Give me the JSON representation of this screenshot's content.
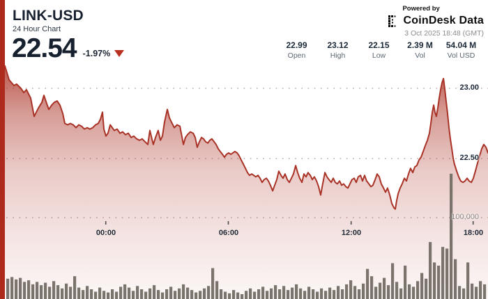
{
  "header": {
    "symbol": "LINK-USD",
    "subtitle": "24 Hour Chart",
    "price": "22.54",
    "change_pct": "-1.97%",
    "change_direction": "down",
    "powered_by": "Powered by",
    "provider": "CoinDesk Data",
    "timestamp": "3 Oct 2025 18:48 (GMT)"
  },
  "stats": [
    {
      "value": "22.99",
      "label": "Open"
    },
    {
      "value": "23.12",
      "label": "High"
    },
    {
      "value": "22.15",
      "label": "Low"
    },
    {
      "value": "2.39 M",
      "label": "Vol"
    },
    {
      "value": "54.04 M",
      "label": "Vol USD"
    }
  ],
  "colors": {
    "accent_red": "#ae2a1d",
    "line_red": "#a93226",
    "triangle_red": "#b8301f",
    "navy_text": "#16202e",
    "grid_dot": "#b5aca7",
    "volume_bar": "#7b746c",
    "volume_label": "#8d8680"
  },
  "chart_data": {
    "type": "area",
    "title": "LINK-USD 24 hour price with volume",
    "x_axis": {
      "unit": "hours_from_chart_start",
      "range_hours": [
        0,
        24
      ],
      "tick_hours": [
        5.2,
        11.23,
        17.27,
        23.27
      ],
      "tick_labels": [
        "00:00",
        "06:00",
        "12:00",
        "18:00"
      ]
    },
    "price_axis": {
      "side": "right",
      "tick_values": [
        23.0,
        22.5
      ],
      "tick_labels": [
        "23.00",
        "22.50"
      ],
      "grid": "dotted"
    },
    "volume_axis": {
      "side": "right",
      "tick_value": 100000,
      "tick_label": "100,000",
      "grid": "dotted"
    },
    "points": [
      [
        0,
        23.14
      ],
      [
        0.24,
        23.16
      ],
      [
        0.45,
        23.06
      ],
      [
        0.69,
        23.02
      ],
      [
        0.82,
        23.03
      ],
      [
        1.03,
        23.0
      ],
      [
        1.17,
        22.97
      ],
      [
        1.3,
        22.99
      ],
      [
        1.51,
        22.93
      ],
      [
        1.68,
        22.8
      ],
      [
        1.89,
        22.86
      ],
      [
        2.06,
        22.9
      ],
      [
        2.16,
        22.95
      ],
      [
        2.3,
        22.89
      ],
      [
        2.4,
        22.85
      ],
      [
        2.54,
        22.88
      ],
      [
        2.67,
        22.9
      ],
      [
        2.81,
        22.91
      ],
      [
        2.95,
        22.88
      ],
      [
        3.09,
        22.82
      ],
      [
        3.19,
        22.75
      ],
      [
        3.33,
        22.74
      ],
      [
        3.46,
        22.75
      ],
      [
        3.6,
        22.74
      ],
      [
        3.74,
        22.72
      ],
      [
        3.87,
        22.74
      ],
      [
        4.01,
        22.73
      ],
      [
        4.15,
        22.71
      ],
      [
        4.29,
        22.72
      ],
      [
        4.42,
        22.71
      ],
      [
        4.56,
        22.72
      ],
      [
        4.7,
        22.74
      ],
      [
        4.83,
        22.75
      ],
      [
        4.94,
        22.78
      ],
      [
        5.04,
        22.83
      ],
      [
        5.11,
        22.71
      ],
      [
        5.21,
        22.66
      ],
      [
        5.31,
        22.68
      ],
      [
        5.42,
        22.74
      ],
      [
        5.52,
        22.72
      ],
      [
        5.62,
        22.7
      ],
      [
        5.76,
        22.71
      ],
      [
        5.9,
        22.68
      ],
      [
        6.03,
        22.69
      ],
      [
        6.17,
        22.67
      ],
      [
        6.31,
        22.68
      ],
      [
        6.45,
        22.65
      ],
      [
        6.58,
        22.66
      ],
      [
        6.72,
        22.64
      ],
      [
        6.86,
        22.63
      ],
      [
        6.99,
        22.64
      ],
      [
        7.13,
        22.62
      ],
      [
        7.27,
        22.6
      ],
      [
        7.37,
        22.7
      ],
      [
        7.47,
        22.64
      ],
      [
        7.54,
        22.6
      ],
      [
        7.65,
        22.65
      ],
      [
        7.78,
        22.7
      ],
      [
        7.89,
        22.63
      ],
      [
        7.99,
        22.66
      ],
      [
        8.09,
        22.76
      ],
      [
        8.23,
        22.85
      ],
      [
        8.33,
        22.79
      ],
      [
        8.43,
        22.76
      ],
      [
        8.57,
        22.72
      ],
      [
        8.71,
        22.74
      ],
      [
        8.85,
        22.73
      ],
      [
        9.02,
        22.6
      ],
      [
        9.12,
        22.65
      ],
      [
        9.22,
        22.67
      ],
      [
        9.36,
        22.69
      ],
      [
        9.5,
        22.68
      ],
      [
        9.6,
        22.65
      ],
      [
        9.7,
        22.58
      ],
      [
        9.81,
        22.62
      ],
      [
        9.91,
        22.65
      ],
      [
        10.01,
        22.64
      ],
      [
        10.11,
        22.62
      ],
      [
        10.22,
        22.61
      ],
      [
        10.32,
        22.63
      ],
      [
        10.42,
        22.64
      ],
      [
        10.53,
        22.62
      ],
      [
        10.63,
        22.6
      ],
      [
        10.73,
        22.57
      ],
      [
        10.83,
        22.55
      ],
      [
        10.94,
        22.53
      ],
      [
        11.04,
        22.51
      ],
      [
        11.14,
        22.53
      ],
      [
        11.25,
        22.54
      ],
      [
        11.35,
        22.53
      ],
      [
        11.45,
        22.54
      ],
      [
        11.55,
        22.55
      ],
      [
        11.66,
        22.54
      ],
      [
        11.76,
        22.52
      ],
      [
        11.86,
        22.49
      ],
      [
        11.97,
        22.46
      ],
      [
        12.07,
        22.43
      ],
      [
        12.17,
        22.4
      ],
      [
        12.27,
        22.38
      ],
      [
        12.38,
        22.39
      ],
      [
        12.48,
        22.38
      ],
      [
        12.58,
        22.37
      ],
      [
        12.69,
        22.38
      ],
      [
        12.79,
        22.36
      ],
      [
        12.89,
        22.33
      ],
      [
        12.99,
        22.35
      ],
      [
        13.1,
        22.36
      ],
      [
        13.2,
        22.34
      ],
      [
        13.3,
        22.31
      ],
      [
        13.41,
        22.27
      ],
      [
        13.51,
        22.31
      ],
      [
        13.61,
        22.35
      ],
      [
        13.71,
        22.41
      ],
      [
        13.82,
        22.38
      ],
      [
        13.92,
        22.36
      ],
      [
        14.02,
        22.39
      ],
      [
        14.13,
        22.35
      ],
      [
        14.23,
        22.33
      ],
      [
        14.33,
        22.36
      ],
      [
        14.43,
        22.39
      ],
      [
        14.54,
        22.45
      ],
      [
        14.64,
        22.4
      ],
      [
        14.74,
        22.36
      ],
      [
        14.85,
        22.33
      ],
      [
        14.95,
        22.39
      ],
      [
        15.05,
        22.37
      ],
      [
        15.15,
        22.4
      ],
      [
        15.26,
        22.38
      ],
      [
        15.36,
        22.35
      ],
      [
        15.46,
        22.37
      ],
      [
        15.57,
        22.34
      ],
      [
        15.67,
        22.3
      ],
      [
        15.77,
        22.24
      ],
      [
        15.87,
        22.32
      ],
      [
        15.98,
        22.4
      ],
      [
        16.08,
        22.37
      ],
      [
        16.18,
        22.35
      ],
      [
        16.29,
        22.33
      ],
      [
        16.39,
        22.36
      ],
      [
        16.49,
        22.33
      ],
      [
        16.59,
        22.32
      ],
      [
        16.7,
        22.34
      ],
      [
        16.8,
        22.31
      ],
      [
        16.9,
        22.32
      ],
      [
        17.01,
        22.3
      ],
      [
        17.11,
        22.29
      ],
      [
        17.21,
        22.32
      ],
      [
        17.31,
        22.35
      ],
      [
        17.42,
        22.36
      ],
      [
        17.52,
        22.33
      ],
      [
        17.62,
        22.37
      ],
      [
        17.73,
        22.38
      ],
      [
        17.83,
        22.34
      ],
      [
        17.93,
        22.38
      ],
      [
        18.03,
        22.34
      ],
      [
        18.14,
        22.32
      ],
      [
        18.24,
        22.3
      ],
      [
        18.34,
        22.31
      ],
      [
        18.45,
        22.35
      ],
      [
        18.55,
        22.39
      ],
      [
        18.65,
        22.37
      ],
      [
        18.75,
        22.32
      ],
      [
        18.86,
        22.29
      ],
      [
        18.96,
        22.26
      ],
      [
        19.06,
        22.29
      ],
      [
        19.17,
        22.24
      ],
      [
        19.27,
        22.18
      ],
      [
        19.37,
        22.15
      ],
      [
        19.44,
        22.14
      ],
      [
        19.51,
        22.2
      ],
      [
        19.58,
        22.25
      ],
      [
        19.68,
        22.29
      ],
      [
        19.78,
        22.32
      ],
      [
        19.89,
        22.36
      ],
      [
        19.99,
        22.34
      ],
      [
        20.09,
        22.39
      ],
      [
        20.19,
        22.43
      ],
      [
        20.3,
        22.4
      ],
      [
        20.4,
        22.44
      ],
      [
        20.5,
        22.45
      ],
      [
        20.61,
        22.49
      ],
      [
        20.71,
        22.51
      ],
      [
        20.81,
        22.55
      ],
      [
        20.91,
        22.59
      ],
      [
        21.02,
        22.63
      ],
      [
        21.12,
        22.68
      ],
      [
        21.19,
        22.75
      ],
      [
        21.26,
        22.83
      ],
      [
        21.33,
        22.88
      ],
      [
        21.39,
        22.83
      ],
      [
        21.46,
        22.8
      ],
      [
        21.53,
        22.86
      ],
      [
        21.6,
        22.93
      ],
      [
        21.67,
        22.99
      ],
      [
        21.74,
        23.04
      ],
      [
        21.81,
        23.07
      ],
      [
        21.87,
        23.0
      ],
      [
        21.94,
        22.91
      ],
      [
        22.01,
        22.82
      ],
      [
        22.08,
        22.72
      ],
      [
        22.15,
        22.64
      ],
      [
        22.22,
        22.57
      ],
      [
        22.29,
        22.5
      ],
      [
        22.35,
        22.46
      ],
      [
        22.46,
        22.41
      ],
      [
        22.56,
        22.37
      ],
      [
        22.66,
        22.34
      ],
      [
        22.77,
        22.33
      ],
      [
        22.87,
        22.34
      ],
      [
        22.97,
        22.36
      ],
      [
        23.07,
        22.34
      ],
      [
        23.18,
        22.33
      ],
      [
        23.28,
        22.36
      ],
      [
        23.38,
        22.41
      ],
      [
        23.49,
        22.47
      ],
      [
        23.59,
        22.52
      ],
      [
        23.69,
        22.57
      ],
      [
        23.79,
        22.6
      ],
      [
        23.9,
        22.58
      ],
      [
        24,
        22.54
      ]
    ],
    "volume": {
      "unit": "units_per_interval",
      "values": [
        25000,
        27000,
        24000,
        26000,
        21000,
        23000,
        18000,
        21000,
        17000,
        20000,
        15000,
        22000,
        17000,
        13000,
        19000,
        15000,
        28000,
        14000,
        11000,
        16000,
        12000,
        9000,
        14000,
        10000,
        8000,
        12000,
        9000,
        15000,
        18000,
        14000,
        10000,
        16000,
        12000,
        9000,
        13000,
        17000,
        11000,
        8000,
        12000,
        15000,
        10000,
        13000,
        18000,
        14000,
        11000,
        8000,
        10000,
        13000,
        16000,
        38000,
        22000,
        12000,
        9000,
        7000,
        11000,
        8000,
        6000,
        10000,
        13000,
        9000,
        12000,
        15000,
        10000,
        13000,
        17000,
        12000,
        16000,
        11000,
        14000,
        18000,
        13000,
        10000,
        15000,
        12000,
        9000,
        13000,
        10000,
        14000,
        11000,
        16000,
        12000,
        18000,
        23000,
        16000,
        12000,
        19000,
        37000,
        28000,
        15000,
        20000,
        26000,
        17000,
        44000,
        21000,
        13000,
        41000,
        18000,
        15000,
        22000,
        32000,
        25000,
        70000,
        45000,
        41000,
        64000,
        62000,
        154000,
        49000,
        16000,
        13000,
        45000,
        19000,
        15000,
        22000,
        18000
      ]
    }
  }
}
